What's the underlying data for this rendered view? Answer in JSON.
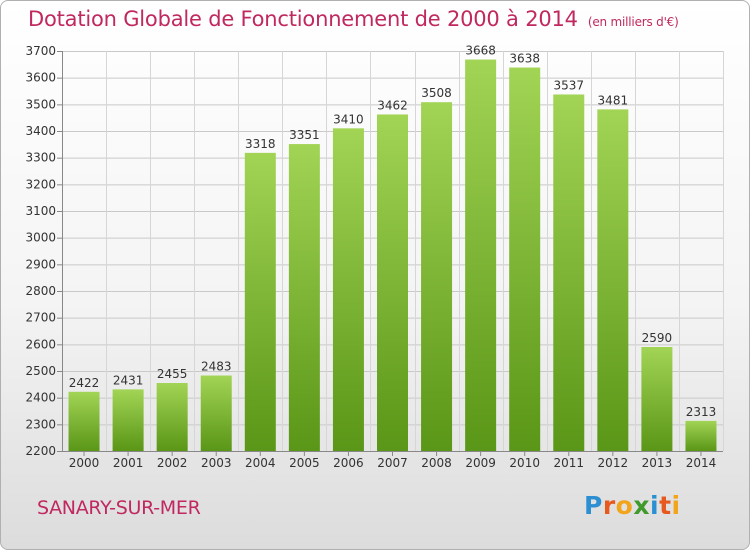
{
  "header": {
    "title": "Dotation Globale de Fonctionnement de 2000 à 2014",
    "subtitle": "(en milliers d'€)"
  },
  "footer": {
    "city": "SANARY-SUR-MER",
    "logo_text": "Proxiti"
  },
  "colors": {
    "title": "#c0285f",
    "bar_top": "#9fd04f",
    "bar_bottom": "#5a9617"
  },
  "chart_data": {
    "type": "bar",
    "title": "Dotation Globale de Fonctionnement de 2000 à 2014",
    "subtitle": "(en milliers d'€)",
    "xlabel": "",
    "ylabel": "",
    "categories": [
      "2000",
      "2001",
      "2002",
      "2003",
      "2004",
      "2005",
      "2006",
      "2007",
      "2008",
      "2009",
      "2010",
      "2011",
      "2012",
      "2013",
      "2014"
    ],
    "values": [
      2422,
      2431,
      2455,
      2483,
      3318,
      3351,
      3410,
      3462,
      3508,
      3668,
      3638,
      3537,
      3481,
      2590,
      2313
    ],
    "ylim": [
      2200,
      3700
    ],
    "yticks": [
      2200,
      2300,
      2400,
      2500,
      2600,
      2700,
      2800,
      2900,
      3000,
      3100,
      3200,
      3300,
      3400,
      3500,
      3600,
      3700
    ],
    "grid": true,
    "legend": "none"
  }
}
